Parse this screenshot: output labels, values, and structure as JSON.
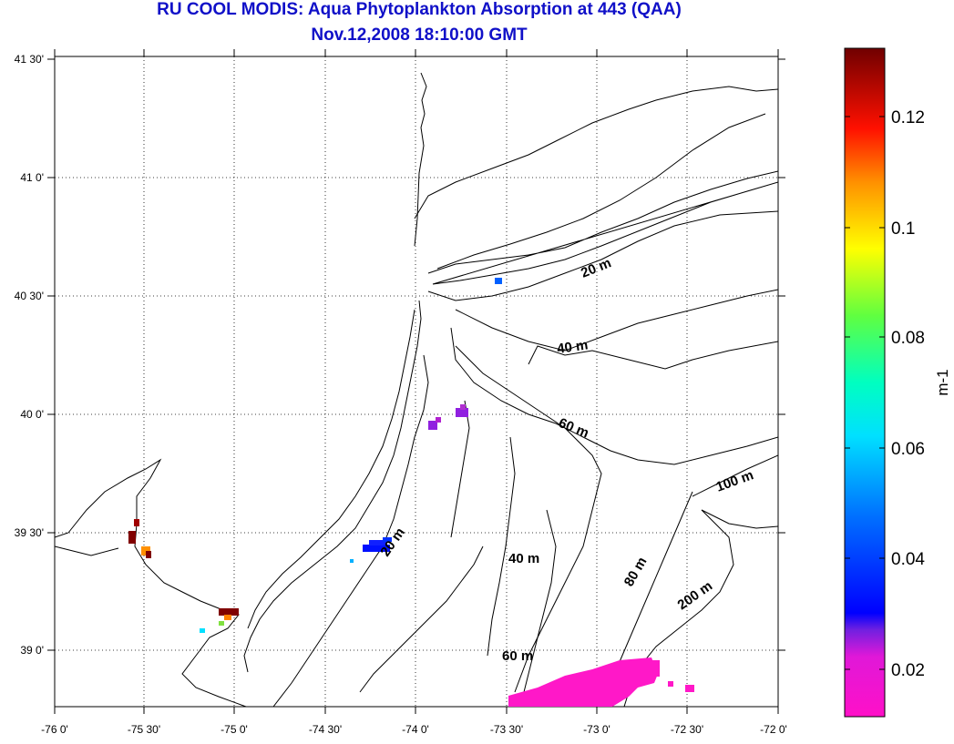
{
  "title": {
    "line1": "RU COOL MODIS: Aqua Phytoplankton Absorption at 443 (QAA)",
    "line2": "Nov.12,2008 18:10:00 GMT"
  },
  "map": {
    "x_ticks": [
      "-76 0'",
      "-75 30'",
      "-75 0'",
      "-74 30'",
      "-74 0'",
      "-73 30'",
      "-73 0'",
      "-72 30'",
      "-72 0'"
    ],
    "y_ticks": [
      "41 30'",
      "41 0'",
      "40 30'",
      "40 0'",
      "39 30'",
      "39 0'"
    ],
    "contour_labels": [
      "20 m",
      "40 m",
      "60 m",
      "100 m",
      "20 m",
      "40 m",
      "80 m",
      "200 m",
      "60 m"
    ],
    "grid": true
  },
  "colorbar": {
    "ticks": [
      "0.12",
      "0.1",
      "0.08",
      "0.06",
      "0.04",
      "0.02"
    ],
    "unit_label": "m-1",
    "colormap": [
      "#ff10c8",
      "#9020e0",
      "#0010ff",
      "#0090ff",
      "#00ffff",
      "#20ff60",
      "#ffff00",
      "#ff9000",
      "#ff0000",
      "#800000"
    ]
  }
}
